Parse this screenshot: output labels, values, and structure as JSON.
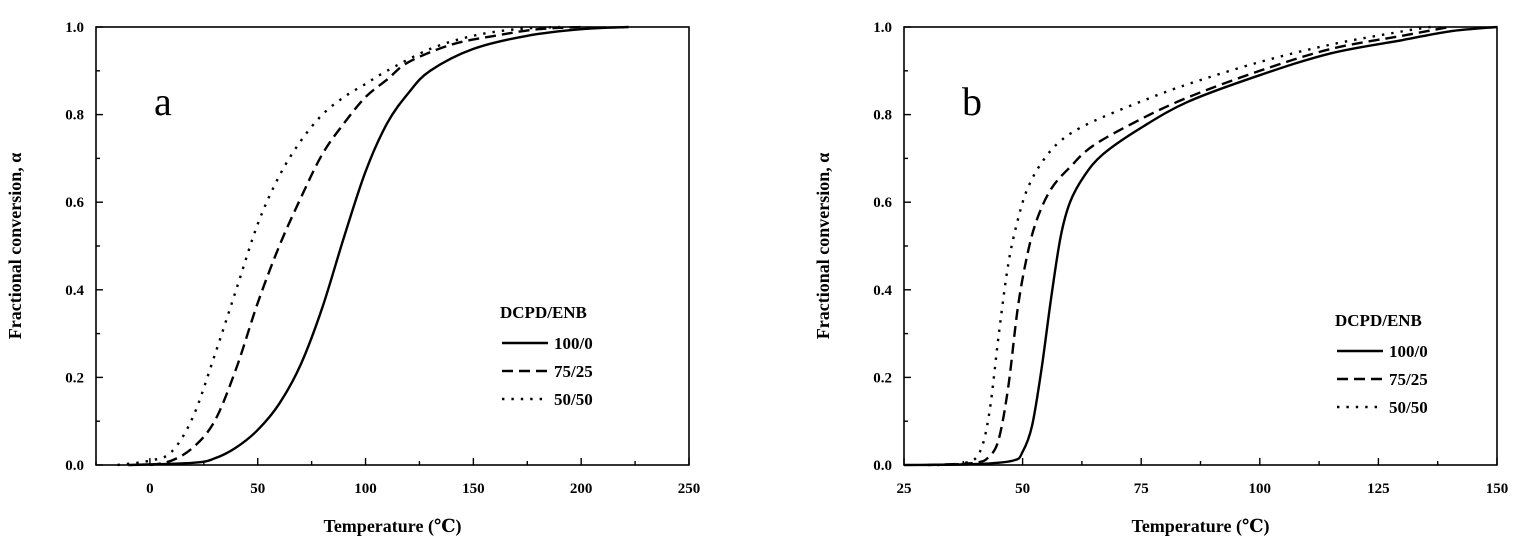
{
  "chart_data": [
    {
      "type": "line",
      "panel_label": "a",
      "xlabel": "Temperature (℃)",
      "ylabel": "Fractional conversion, α",
      "xlim": [
        -25,
        250
      ],
      "ylim": [
        0,
        1.0
      ],
      "x_ticks": [
        0,
        50,
        100,
        150,
        200,
        250
      ],
      "x_tick_labels": [
        "0",
        "50",
        "100",
        "150",
        "200",
        "250"
      ],
      "y_ticks": [
        0,
        0.2,
        0.4,
        0.6,
        0.8,
        1.0
      ],
      "y_tick_labels": [
        "0.0",
        "0.2",
        "0.4",
        "0.6",
        "0.8",
        "1.0"
      ],
      "legend": {
        "title": "DCPD/ENB",
        "placement": "center-right"
      },
      "series": [
        {
          "name": "100/0",
          "style": "solid",
          "x": [
            -10,
            20,
            30,
            40,
            50,
            60,
            70,
            80,
            90,
            100,
            110,
            120,
            130,
            150,
            175,
            200,
            222
          ],
          "y": [
            0,
            0.005,
            0.015,
            0.04,
            0.08,
            0.14,
            0.23,
            0.36,
            0.52,
            0.67,
            0.78,
            0.85,
            0.9,
            0.95,
            0.98,
            0.995,
            1.0
          ]
        },
        {
          "name": "75/25",
          "style": "dashed",
          "x": [
            0,
            10,
            20,
            30,
            40,
            50,
            60,
            70,
            80,
            90,
            100,
            110,
            120,
            140,
            160,
            180,
            200
          ],
          "y": [
            0,
            0.01,
            0.04,
            0.1,
            0.22,
            0.37,
            0.5,
            0.61,
            0.71,
            0.78,
            0.84,
            0.88,
            0.92,
            0.96,
            0.98,
            0.995,
            1.0
          ]
        },
        {
          "name": "50/50",
          "style": "dotted",
          "x": [
            -15,
            0,
            10,
            20,
            30,
            40,
            50,
            60,
            70,
            80,
            90,
            100,
            110,
            130,
            150,
            170,
            190
          ],
          "y": [
            0,
            0.01,
            0.03,
            0.11,
            0.25,
            0.4,
            0.55,
            0.66,
            0.74,
            0.8,
            0.84,
            0.87,
            0.9,
            0.95,
            0.98,
            0.995,
            1.0
          ]
        }
      ]
    },
    {
      "type": "line",
      "panel_label": "b",
      "xlabel": "Temperature (℃)",
      "ylabel": "Fractional conversion, α",
      "xlim": [
        25,
        150
      ],
      "ylim": [
        0,
        1.0
      ],
      "x_ticks": [
        25,
        50,
        75,
        100,
        125,
        150
      ],
      "x_tick_labels": [
        "25",
        "50",
        "75",
        "100",
        "125",
        "150"
      ],
      "y_ticks": [
        0,
        0.2,
        0.4,
        0.6,
        0.8,
        1.0
      ],
      "y_tick_labels": [
        "0.0",
        "0.2",
        "0.4",
        "0.6",
        "0.8",
        "1.0"
      ],
      "legend": {
        "title": "DCPD/ENB",
        "placement": "center-right"
      },
      "series": [
        {
          "name": "100/0",
          "style": "solid",
          "x": [
            25,
            40,
            48,
            50,
            52,
            54,
            56,
            58,
            60,
            63,
            67,
            75,
            85,
            100,
            115,
            130,
            140,
            150
          ],
          "y": [
            0,
            0.002,
            0.01,
            0.03,
            0.09,
            0.22,
            0.38,
            0.52,
            0.6,
            0.66,
            0.71,
            0.77,
            0.83,
            0.89,
            0.94,
            0.97,
            0.99,
            1.0
          ]
        },
        {
          "name": "75/25",
          "style": "dashed",
          "x": [
            30,
            40,
            43,
            45,
            47,
            49,
            51,
            53,
            56,
            60,
            65,
            75,
            85,
            100,
            115,
            130,
            140
          ],
          "y": [
            0,
            0.005,
            0.02,
            0.06,
            0.18,
            0.36,
            0.48,
            0.56,
            0.63,
            0.68,
            0.73,
            0.79,
            0.84,
            0.9,
            0.95,
            0.98,
            1.0
          ]
        },
        {
          "name": "50/50",
          "style": "dotted",
          "x": [
            32,
            38,
            41,
            43,
            45,
            47,
            49,
            51,
            54,
            58,
            64,
            75,
            85,
            100,
            115,
            130,
            136
          ],
          "y": [
            0,
            0.005,
            0.03,
            0.12,
            0.3,
            0.46,
            0.56,
            0.63,
            0.69,
            0.74,
            0.78,
            0.83,
            0.87,
            0.92,
            0.96,
            0.99,
            1.0
          ]
        }
      ]
    }
  ]
}
